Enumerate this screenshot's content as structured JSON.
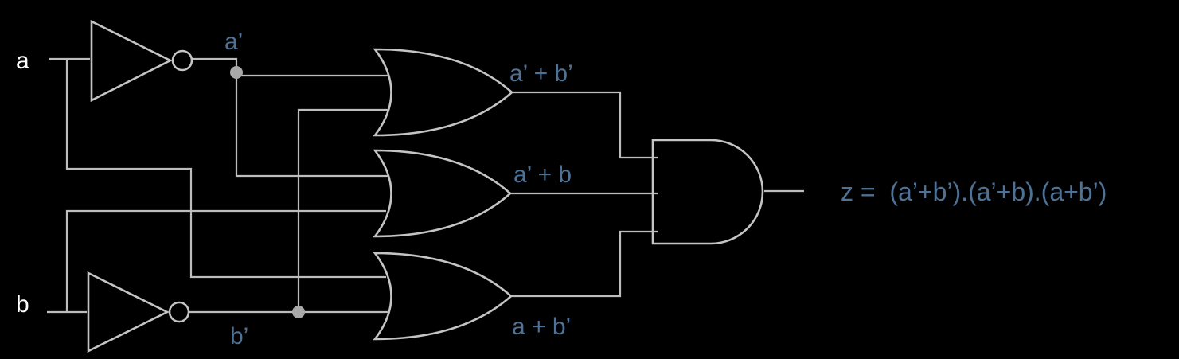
{
  "colors": {
    "background": "#000000",
    "wire": "#bdbdbd",
    "label_input": "#ffffff",
    "label_signal": "#4e7295"
  },
  "inputs": {
    "a": "a",
    "b": "b"
  },
  "signals": {
    "a_not": "a’",
    "b_not": "b’",
    "or1": "a’ + b’",
    "or2": "a’ + b",
    "or3": "a + b’"
  },
  "output_expression": "z =  (a’+b’).(a’+b).(a+b’)"
}
